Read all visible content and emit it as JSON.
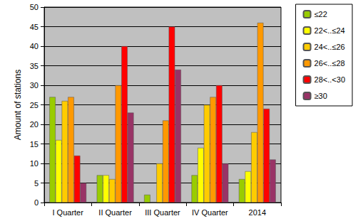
{
  "chart_data": {
    "type": "bar",
    "ylabel": "Amount of stations",
    "categories": [
      "I Quarter",
      "II Quarter",
      "III Quarter",
      "IV Quarter",
      "2014"
    ],
    "series": [
      {
        "name": "≤22",
        "color": "#99cc00",
        "values": [
          27,
          7,
          2,
          7,
          6
        ]
      },
      {
        "name": "22<..≤24",
        "color": "#ffff00",
        "values": [
          16,
          7,
          0,
          14,
          8
        ]
      },
      {
        "name": "24<..≤26",
        "color": "#ffcc00",
        "values": [
          26,
          6,
          10,
          25,
          18
        ]
      },
      {
        "name": "26<..≤28",
        "color": "#ff9900",
        "values": [
          27,
          30,
          21,
          27,
          46
        ]
      },
      {
        "name": "28<..<30",
        "color": "#ff0000",
        "values": [
          12,
          40,
          45,
          30,
          24
        ]
      },
      {
        "name": "≥30",
        "color": "#993366",
        "values": [
          5,
          23,
          34,
          10,
          11
        ]
      }
    ],
    "ylim": [
      0,
      50
    ],
    "yticks": [
      0,
      5,
      10,
      15,
      20,
      25,
      30,
      35,
      40,
      45,
      50
    ],
    "grid": true,
    "legend": "top-right"
  }
}
